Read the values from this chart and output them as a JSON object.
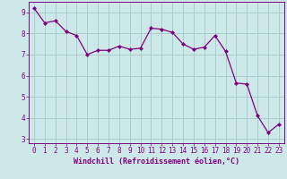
{
  "x": [
    0,
    1,
    2,
    3,
    4,
    5,
    6,
    7,
    8,
    9,
    10,
    11,
    12,
    13,
    14,
    15,
    16,
    17,
    18,
    19,
    20,
    21,
    22,
    23
  ],
  "y": [
    9.2,
    8.5,
    8.6,
    8.1,
    7.9,
    7.0,
    7.2,
    7.2,
    7.4,
    7.25,
    7.3,
    8.25,
    8.2,
    8.05,
    7.5,
    7.25,
    7.35,
    7.9,
    7.15,
    5.65,
    5.6,
    4.1,
    3.3,
    3.7
  ],
  "line_color": "#800080",
  "marker": "D",
  "marker_size": 2.0,
  "linewidth": 0.9,
  "bg_color": "#cce8e8",
  "grid_color": "#aacccc",
  "xlabel": "Windchill (Refroidissement éolien,°C)",
  "ylim": [
    2.8,
    9.5
  ],
  "xlim": [
    -0.5,
    23.5
  ],
  "yticks": [
    3,
    4,
    5,
    6,
    7,
    8,
    9
  ],
  "xticks": [
    0,
    1,
    2,
    3,
    4,
    5,
    6,
    7,
    8,
    9,
    10,
    11,
    12,
    13,
    14,
    15,
    16,
    17,
    18,
    19,
    20,
    21,
    22,
    23
  ],
  "tick_fontsize": 5.5,
  "label_fontsize": 6.0
}
